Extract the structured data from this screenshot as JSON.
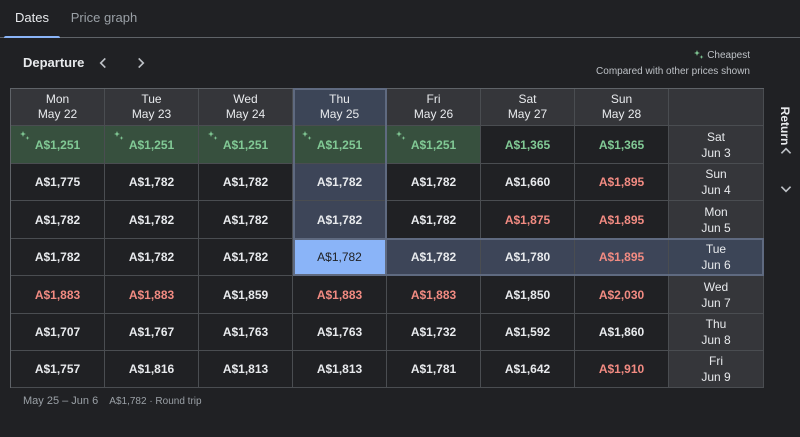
{
  "tabs": [
    {
      "label": "Dates"
    },
    {
      "label": "Price graph"
    }
  ],
  "departure": {
    "label": "Departure"
  },
  "legend": {
    "cheapest": "Cheapest",
    "note": "Compared with other prices shown"
  },
  "return_label": "Return",
  "columns": [
    {
      "dow": "Mon",
      "date": "May 22"
    },
    {
      "dow": "Tue",
      "date": "May 23"
    },
    {
      "dow": "Wed",
      "date": "May 24"
    },
    {
      "dow": "Thu",
      "date": "May 25"
    },
    {
      "dow": "Fri",
      "date": "May 26"
    },
    {
      "dow": "Sat",
      "date": "May 27"
    },
    {
      "dow": "Sun",
      "date": "May 28"
    }
  ],
  "rows": [
    {
      "dow": "Sat",
      "date": "Jun 3",
      "prices": [
        {
          "v": "A$1,251",
          "t": "cheap",
          "spark": true
        },
        {
          "v": "A$1,251",
          "t": "cheap",
          "spark": true
        },
        {
          "v": "A$1,251",
          "t": "cheap",
          "spark": true
        },
        {
          "v": "A$1,251",
          "t": "cheap",
          "spark": true
        },
        {
          "v": "A$1,251",
          "t": "cheap",
          "spark": true
        },
        {
          "v": "A$1,365",
          "t": "cheap-text"
        },
        {
          "v": "A$1,365",
          "t": "cheap-text"
        }
      ]
    },
    {
      "dow": "Sun",
      "date": "Jun 4",
      "prices": [
        {
          "v": "A$1,775",
          "t": "normal"
        },
        {
          "v": "A$1,782",
          "t": "normal"
        },
        {
          "v": "A$1,782",
          "t": "normal"
        },
        {
          "v": "A$1,782",
          "t": "normal"
        },
        {
          "v": "A$1,782",
          "t": "normal"
        },
        {
          "v": "A$1,660",
          "t": "normal"
        },
        {
          "v": "A$1,895",
          "t": "high"
        }
      ]
    },
    {
      "dow": "Mon",
      "date": "Jun 5",
      "prices": [
        {
          "v": "A$1,782",
          "t": "normal"
        },
        {
          "v": "A$1,782",
          "t": "normal"
        },
        {
          "v": "A$1,782",
          "t": "normal"
        },
        {
          "v": "A$1,782",
          "t": "normal"
        },
        {
          "v": "A$1,782",
          "t": "normal"
        },
        {
          "v": "A$1,875",
          "t": "high"
        },
        {
          "v": "A$1,895",
          "t": "high"
        }
      ]
    },
    {
      "dow": "Tue",
      "date": "Jun 6",
      "prices": [
        {
          "v": "A$1,782",
          "t": "normal"
        },
        {
          "v": "A$1,782",
          "t": "normal"
        },
        {
          "v": "A$1,782",
          "t": "normal"
        },
        {
          "v": "A$1,782",
          "t": "selected"
        },
        {
          "v": "A$1,782",
          "t": "normal"
        },
        {
          "v": "A$1,780",
          "t": "normal"
        },
        {
          "v": "A$1,895",
          "t": "high"
        }
      ]
    },
    {
      "dow": "Wed",
      "date": "Jun 7",
      "prices": [
        {
          "v": "A$1,883",
          "t": "high"
        },
        {
          "v": "A$1,883",
          "t": "high"
        },
        {
          "v": "A$1,859",
          "t": "normal"
        },
        {
          "v": "A$1,883",
          "t": "high"
        },
        {
          "v": "A$1,883",
          "t": "high"
        },
        {
          "v": "A$1,850",
          "t": "normal"
        },
        {
          "v": "A$2,030",
          "t": "high"
        }
      ]
    },
    {
      "dow": "Thu",
      "date": "Jun 8",
      "prices": [
        {
          "v": "A$1,707",
          "t": "normal"
        },
        {
          "v": "A$1,767",
          "t": "normal"
        },
        {
          "v": "A$1,763",
          "t": "normal"
        },
        {
          "v": "A$1,763",
          "t": "normal"
        },
        {
          "v": "A$1,732",
          "t": "normal"
        },
        {
          "v": "A$1,592",
          "t": "normal"
        },
        {
          "v": "A$1,860",
          "t": "normal"
        }
      ]
    },
    {
      "dow": "Fri",
      "date": "Jun 9",
      "prices": [
        {
          "v": "A$1,757",
          "t": "normal"
        },
        {
          "v": "A$1,816",
          "t": "normal"
        },
        {
          "v": "A$1,813",
          "t": "normal"
        },
        {
          "v": "A$1,813",
          "t": "normal"
        },
        {
          "v": "A$1,781",
          "t": "normal"
        },
        {
          "v": "A$1,642",
          "t": "normal"
        },
        {
          "v": "A$1,910",
          "t": "high"
        }
      ]
    }
  ],
  "selection": {
    "col": 3,
    "row": 3
  },
  "footer": {
    "range": "May 25 – Jun 6",
    "detail": "A$1,782 · Round trip"
  },
  "colors": {
    "cheap": "#81c995",
    "high": "#f28b82",
    "selected": "#8ab4f8"
  }
}
